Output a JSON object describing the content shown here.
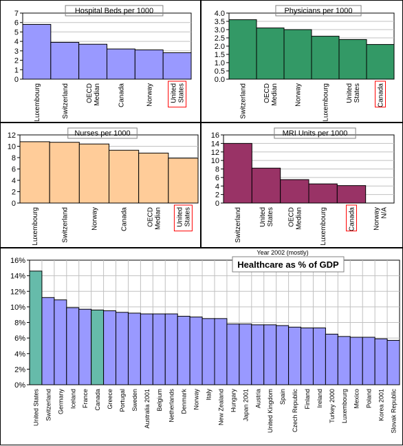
{
  "chart_data": [
    {
      "type": "bar",
      "title": "Hospital Beds per 1000",
      "categories": [
        "Luxembourg",
        "Switzerland",
        "OECD Median",
        "Canada",
        "Norway",
        "United States"
      ],
      "values": [
        5.8,
        3.9,
        3.7,
        3.2,
        3.1,
        2.8
      ],
      "ylim": [
        0,
        7
      ],
      "yticks": [
        "0",
        "1",
        "2",
        "3",
        "4",
        "5",
        "6",
        "7"
      ],
      "bar_color": "#9999ff",
      "highlight": "United States",
      "xlabel": "",
      "ylabel": ""
    },
    {
      "type": "bar",
      "title": "Physicians per 1000",
      "categories": [
        "Switzerland",
        "OECD Median",
        "Norway",
        "Luxembourg",
        "United States",
        "Canada"
      ],
      "values": [
        3.6,
        3.1,
        3.0,
        2.6,
        2.4,
        2.1
      ],
      "ylim": [
        0,
        4
      ],
      "yticks": [
        "0.0",
        "0.5",
        "1.0",
        "1.5",
        "2.0",
        "2.5",
        "3.0",
        "3.5",
        "4.0"
      ],
      "bar_color": "#339966",
      "highlight": "Canada",
      "xlabel": "",
      "ylabel": ""
    },
    {
      "type": "bar",
      "title": "Nurses per 1000",
      "categories": [
        "Luxembourg",
        "Switzerland",
        "Norway",
        "Canada",
        "OECD Median",
        "United States"
      ],
      "values": [
        10.8,
        10.7,
        10.4,
        9.3,
        8.8,
        7.9
      ],
      "ylim": [
        0,
        12
      ],
      "yticks": [
        "0",
        "2",
        "4",
        "6",
        "8",
        "10",
        "12"
      ],
      "bar_color": "#ffcc99",
      "highlight": "United States",
      "xlabel": "",
      "ylabel": ""
    },
    {
      "type": "bar",
      "title": "MRI Units per 1000",
      "categories": [
        "Switzerland",
        "United States",
        "OECD Median",
        "Luxembourg",
        "Canada",
        "Norway N/A"
      ],
      "values": [
        14.0,
        8.2,
        5.5,
        4.5,
        4.1,
        0
      ],
      "ylim": [
        0,
        16
      ],
      "yticks": [
        "0",
        "2",
        "4",
        "6",
        "8",
        "10",
        "12",
        "14",
        "16"
      ],
      "bar_color": "#993366",
      "highlight": "Canada",
      "xlabel": "",
      "ylabel": ""
    },
    {
      "type": "bar",
      "title": "Healthcare as % of GDP",
      "subtitle": "Year 2002 (mostly)",
      "categories": [
        "United States",
        "Switzerland",
        "Germany",
        "Iceland",
        "France",
        "Canada",
        "Greece",
        "Portugal",
        "Sweden",
        "Australia 2001",
        "Belgium",
        "Netherlands",
        "Denmark",
        "Norway",
        "Italy",
        "New Zealand",
        "Hungary",
        "Japan 2001",
        "Austria",
        "United Kingdom",
        "Spain",
        "Czech Republic",
        "Finland",
        "Ireland",
        "Turkey 2000",
        "Luxembourg",
        "Mexico",
        "Poland",
        "Korea 2001",
        "Slovak Republic"
      ],
      "values": [
        14.6,
        11.2,
        10.9,
        9.9,
        9.7,
        9.6,
        9.5,
        9.3,
        9.2,
        9.1,
        9.1,
        9.1,
        8.8,
        8.7,
        8.5,
        8.5,
        7.8,
        7.8,
        7.7,
        7.7,
        7.6,
        7.4,
        7.3,
        7.3,
        6.5,
        6.2,
        6.1,
        6.1,
        5.9,
        5.7
      ],
      "ylim": [
        0,
        16
      ],
      "yticks": [
        "0%",
        "2%",
        "4%",
        "6%",
        "8%",
        "10%",
        "12%",
        "14%",
        "16%"
      ],
      "bar_color": "#9999ff",
      "highlight_color": "#66bbaa",
      "highlight_bars": [
        "United States",
        "Canada"
      ],
      "xlabel": "",
      "ylabel": ""
    }
  ]
}
